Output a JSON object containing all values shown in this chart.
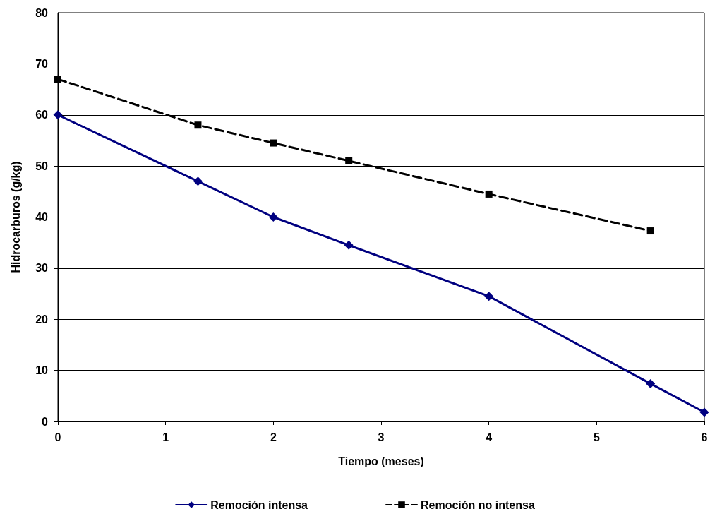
{
  "chart_data": {
    "type": "line",
    "xlabel": "Tiempo (meses)",
    "ylabel": "Hidrocarburos (g/kg)",
    "xlim": [
      0,
      6
    ],
    "xticks": [
      0,
      1,
      2,
      3,
      4,
      5,
      6
    ],
    "ylim": [
      0,
      80
    ],
    "yticks": [
      0,
      10,
      20,
      30,
      40,
      50,
      60,
      70,
      80
    ],
    "grid": "y",
    "legend": "bottom",
    "series": [
      {
        "name": "Remoción intensa",
        "color": "#000080",
        "marker": "diamond",
        "line_style": "solid",
        "x": [
          0,
          1.3,
          2,
          2.7,
          4,
          5.5,
          6
        ],
        "values": [
          60,
          47,
          40,
          34.5,
          24.5,
          7.4,
          1.8
        ]
      },
      {
        "name": "Remoción no intensa",
        "color": "#000000",
        "marker": "square",
        "line_style": "dashed",
        "x": [
          0,
          1.3,
          2,
          2.7,
          4,
          5.5
        ],
        "values": [
          67,
          58,
          54.5,
          51,
          44.5,
          37.3
        ]
      }
    ]
  }
}
